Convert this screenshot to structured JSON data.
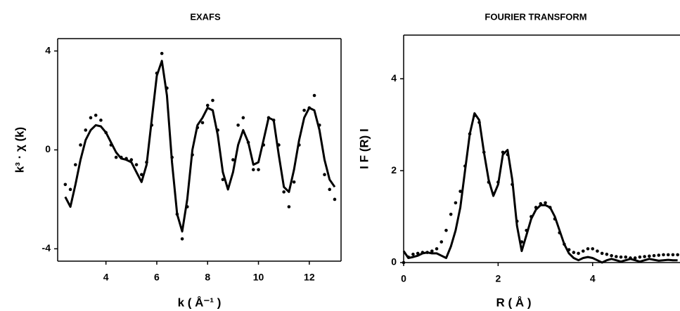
{
  "chart_data": [
    {
      "type": "line",
      "title": "EXAFS",
      "x_label": "k ( Å⁻¹ )",
      "y_label": "k³ · χ (k)",
      "x": [
        2.4,
        2.6,
        2.8,
        3.0,
        3.2,
        3.4,
        3.6,
        3.8,
        4.0,
        4.2,
        4.4,
        4.6,
        4.8,
        5.0,
        5.2,
        5.4,
        5.6,
        5.8,
        6.0,
        6.2,
        6.4,
        6.6,
        6.8,
        7.0,
        7.2,
        7.4,
        7.6,
        7.8,
        8.0,
        8.2,
        8.4,
        8.6,
        8.8,
        9.0,
        9.2,
        9.4,
        9.6,
        9.8,
        10.0,
        10.2,
        10.4,
        10.6,
        10.8,
        11.0,
        11.2,
        11.4,
        11.6,
        11.8,
        12.0,
        12.2,
        12.4,
        12.6,
        12.8,
        13.0
      ],
      "series": [
        {
          "mode": "line",
          "color": "#000000",
          "values": [
            -1.9,
            -2.3,
            -1.4,
            -0.4,
            0.4,
            0.8,
            1.0,
            0.95,
            0.7,
            0.3,
            -0.1,
            -0.35,
            -0.4,
            -0.5,
            -0.9,
            -1.3,
            -0.6,
            1.2,
            3.0,
            3.6,
            2.2,
            -0.5,
            -2.6,
            -3.3,
            -2.0,
            0.0,
            1.0,
            1.3,
            1.7,
            1.6,
            0.6,
            -0.9,
            -1.6,
            -0.9,
            0.2,
            0.8,
            0.3,
            -0.6,
            -0.5,
            0.4,
            1.3,
            1.2,
            -0.2,
            -1.5,
            -1.7,
            -0.8,
            0.4,
            1.3,
            1.7,
            1.6,
            0.8,
            -0.4,
            -1.2,
            -1.5
          ]
        },
        {
          "mode": "markers",
          "color": "#000000",
          "values": [
            -1.4,
            -1.6,
            -0.6,
            0.2,
            0.8,
            1.3,
            1.4,
            1.2,
            0.7,
            0.2,
            -0.3,
            -0.3,
            -0.35,
            -0.4,
            -0.6,
            -1.0,
            -0.5,
            1.0,
            3.1,
            3.9,
            2.5,
            -0.3,
            -2.6,
            -3.6,
            -2.3,
            -0.2,
            0.9,
            1.1,
            1.8,
            2.0,
            0.8,
            -1.2,
            -1.5,
            -0.4,
            1.0,
            1.3,
            0.3,
            -0.8,
            -0.8,
            0.2,
            1.3,
            1.2,
            0.2,
            -1.7,
            -2.3,
            -1.3,
            0.2,
            1.6,
            1.7,
            2.2,
            1.0,
            -1.0,
            -1.6,
            -2.0
          ]
        }
      ],
      "xlim": [
        2.1,
        13.25
      ],
      "ylim": [
        -4.5,
        4.5
      ],
      "xticks": [
        4,
        6,
        8,
        10,
        12
      ],
      "yticks": [
        -4,
        0,
        4
      ],
      "grid": false,
      "box": true
    },
    {
      "type": "line",
      "title": "FOURIER  TRANSFORM",
      "x_label": "R ( Å )",
      "y_label": "I F (R) I",
      "x": [
        0.0,
        0.1,
        0.2,
        0.3,
        0.4,
        0.5,
        0.6,
        0.7,
        0.8,
        0.9,
        1.0,
        1.1,
        1.2,
        1.3,
        1.4,
        1.5,
        1.6,
        1.7,
        1.8,
        1.9,
        2.0,
        2.1,
        2.2,
        2.3,
        2.4,
        2.5,
        2.6,
        2.7,
        2.8,
        2.9,
        3.0,
        3.1,
        3.2,
        3.3,
        3.4,
        3.5,
        3.6,
        3.7,
        3.8,
        3.9,
        4.0,
        4.1,
        4.2,
        4.3,
        4.4,
        4.5,
        4.6,
        4.7,
        4.8,
        4.9,
        5.0,
        5.1,
        5.2,
        5.3,
        5.4,
        5.5,
        5.6,
        5.7,
        5.8
      ],
      "series": [
        {
          "mode": "line",
          "color": "#000000",
          "values": [
            0.25,
            0.1,
            0.12,
            0.15,
            0.2,
            0.22,
            0.2,
            0.2,
            0.15,
            0.1,
            0.35,
            0.7,
            1.2,
            2.0,
            2.8,
            3.25,
            3.1,
            2.4,
            1.8,
            1.45,
            1.7,
            2.35,
            2.45,
            1.8,
            0.8,
            0.25,
            0.6,
            0.95,
            1.15,
            1.25,
            1.25,
            1.2,
            1.0,
            0.7,
            0.4,
            0.2,
            0.1,
            0.05,
            0.1,
            0.12,
            0.1,
            0.05,
            0.0,
            0.05,
            0.08,
            0.05,
            0.02,
            0.05,
            0.08,
            0.05,
            0.02,
            0.05,
            0.08,
            0.06,
            0.04,
            0.05,
            0.06,
            0.05,
            0.05
          ]
        },
        {
          "mode": "markers",
          "color": "#000000",
          "values": [
            0.0,
            0.12,
            0.18,
            0.2,
            0.22,
            0.22,
            0.25,
            0.3,
            0.45,
            0.7,
            1.05,
            1.3,
            1.55,
            2.1,
            2.8,
            3.2,
            3.05,
            2.4,
            1.75,
            1.5,
            1.75,
            2.4,
            2.35,
            1.7,
            0.9,
            0.45,
            0.7,
            1.0,
            1.2,
            1.28,
            1.3,
            1.2,
            0.95,
            0.65,
            0.4,
            0.28,
            0.22,
            0.2,
            0.25,
            0.3,
            0.3,
            0.25,
            0.2,
            0.18,
            0.15,
            0.13,
            0.12,
            0.12,
            0.1,
            0.1,
            0.12,
            0.13,
            0.14,
            0.15,
            0.16,
            0.17,
            0.17,
            0.17,
            0.17
          ]
        }
      ],
      "xlim": [
        0,
        5.85
      ],
      "ylim": [
        0,
        4.95
      ],
      "xticks": [
        0,
        2,
        4
      ],
      "yticks": [
        0,
        2,
        4
      ],
      "grid": false,
      "box": false
    }
  ]
}
